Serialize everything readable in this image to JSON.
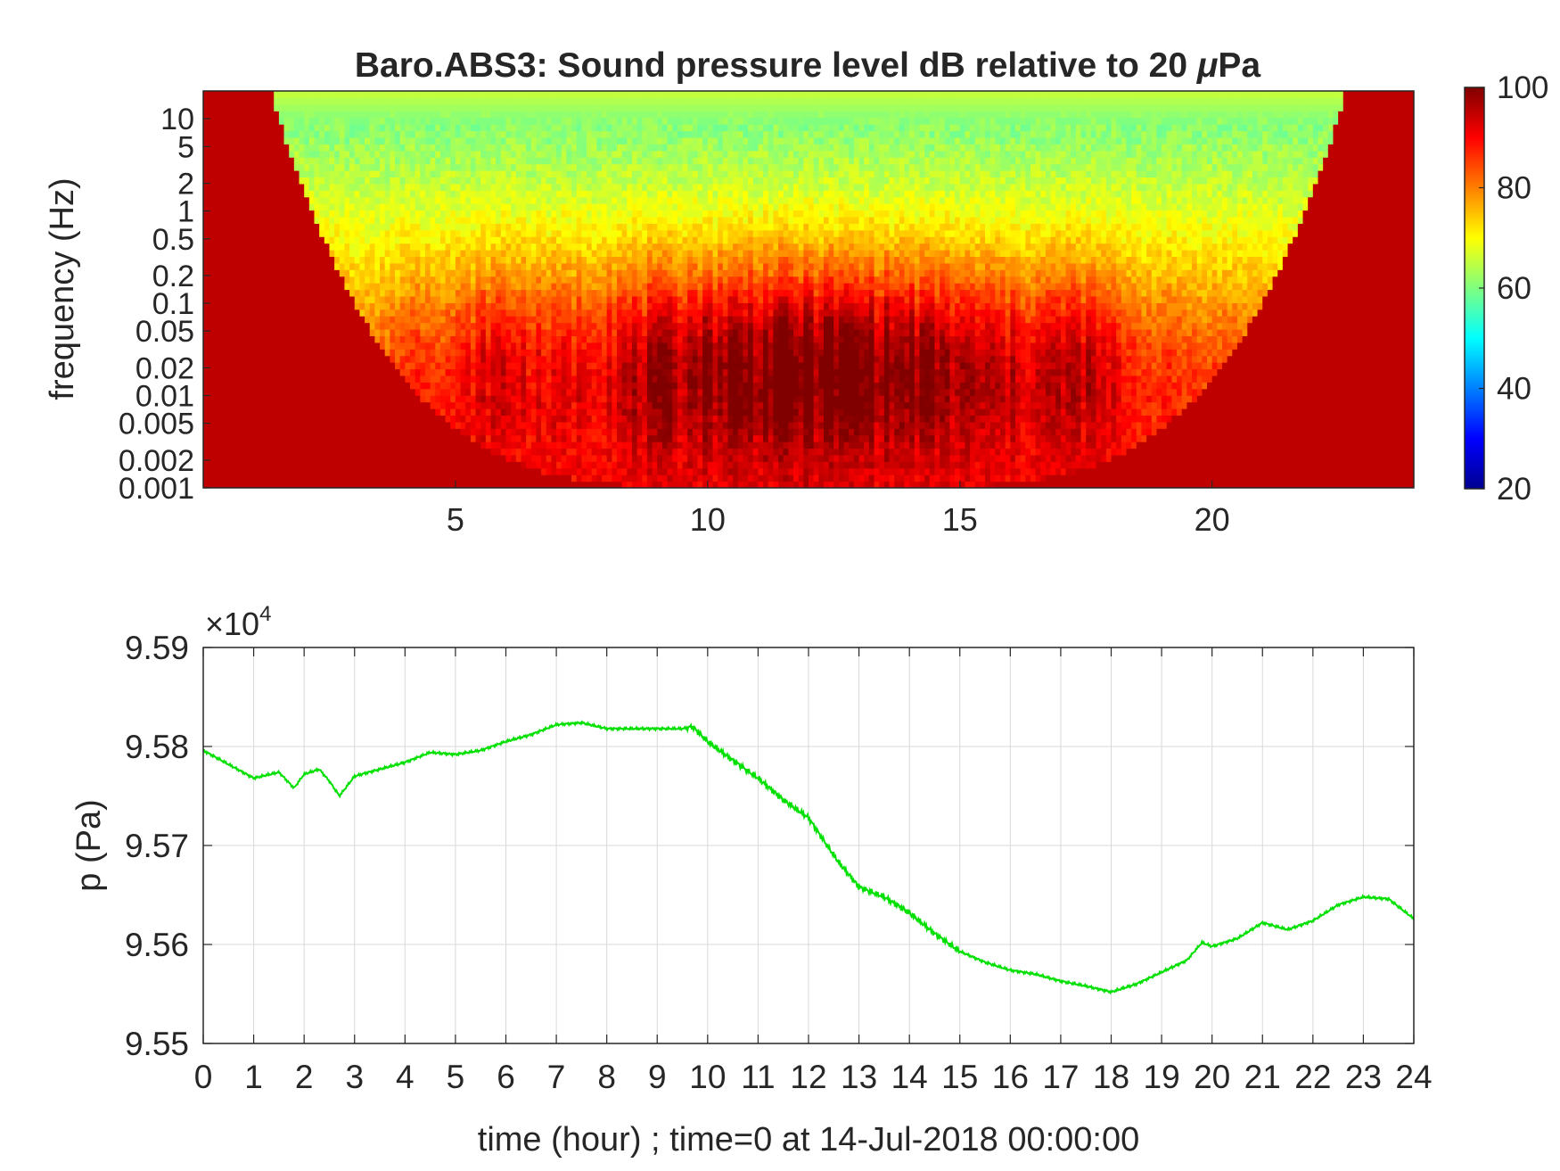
{
  "chart_data": [
    {
      "type": "heatmap",
      "title": "Baro.ABS3: Sound pressure level dB relative to 20 μPa",
      "title_main": "Baro.ABS3: Sound pressure level dB relative to 20 ",
      "title_mu": "μ",
      "title_unit": "Pa",
      "xlabel": "",
      "ylabel": "frequency (Hz)",
      "xlim": [
        0,
        24
      ],
      "ylim_hz": [
        0.001,
        20
      ],
      "y_scale": "log",
      "x_ticks": [
        "5",
        "10",
        "15",
        "20"
      ],
      "x_tick_values": [
        5,
        10,
        15,
        20
      ],
      "y_ticks": [
        "10",
        "5",
        "2",
        "1",
        "0.5",
        "0.2",
        "0.1",
        "0.05",
        "0.02",
        "0.01",
        "0.005",
        "0.002",
        "0.001"
      ],
      "y_tick_values": [
        10,
        5,
        2,
        1,
        0.5,
        0.2,
        0.1,
        0.05,
        0.02,
        0.01,
        0.005,
        0.002,
        0.001
      ],
      "colorbar": {
        "label": "",
        "range": [
          20,
          100
        ],
        "ticks": [
          "20",
          "40",
          "60",
          "80",
          "100"
        ],
        "tick_values": [
          20,
          40,
          60,
          80,
          100
        ],
        "colormap": "jet"
      }
    },
    {
      "type": "line",
      "title": "",
      "xlabel": "time (hour) ; time=0 at 14-Jul-2018 00:00:00",
      "ylabel": "p (Pa)",
      "y_multiplier_base": "×10",
      "y_multiplier_exp": "4",
      "xlim": [
        0,
        24
      ],
      "ylim": [
        95500,
        95900
      ],
      "x_ticks": [
        "0",
        "1",
        "2",
        "3",
        "4",
        "5",
        "6",
        "7",
        "8",
        "9",
        "10",
        "11",
        "12",
        "13",
        "14",
        "15",
        "16",
        "17",
        "18",
        "19",
        "20",
        "21",
        "22",
        "23",
        "24"
      ],
      "y_ticks": [
        "9.55",
        "9.56",
        "9.57",
        "9.58",
        "9.59"
      ],
      "y_tick_values": [
        95500,
        95600,
        95700,
        95800,
        95900
      ],
      "grid": true,
      "series": [
        {
          "color": "#00e000",
          "x": [
            0,
            0.5,
            1,
            1.5,
            1.8,
            2,
            2.3,
            2.5,
            2.7,
            3,
            3.5,
            4,
            4.5,
            5,
            5.5,
            6,
            6.5,
            7,
            7.5,
            8,
            8.5,
            9,
            9.5,
            9.7,
            10,
            10.5,
            11,
            11.5,
            12,
            12.3,
            12.6,
            13,
            13.5,
            14,
            14.5,
            15,
            15.5,
            16,
            16.5,
            17,
            17.5,
            18,
            18.5,
            19,
            19.5,
            19.8,
            20,
            20.5,
            21,
            21.5,
            22,
            22.5,
            23,
            23.5,
            24
          ],
          "y": [
            95796,
            95782,
            95768,
            95774,
            95758,
            95772,
            95777,
            95765,
            95750,
            95770,
            95777,
            95784,
            95794,
            95792,
            95796,
            95805,
            95812,
            95822,
            95824,
            95818,
            95818,
            95818,
            95818,
            95820,
            95805,
            95786,
            95768,
            95746,
            95728,
            95705,
            95683,
            95658,
            95648,
            95632,
            95611,
            95593,
            95582,
            95574,
            95570,
            95563,
            95558,
            95552,
            95560,
            95572,
            95584,
            95602,
            95598,
            95606,
            95622,
            95615,
            95624,
            95640,
            95648,
            95646,
            95626
          ]
        }
      ]
    }
  ]
}
